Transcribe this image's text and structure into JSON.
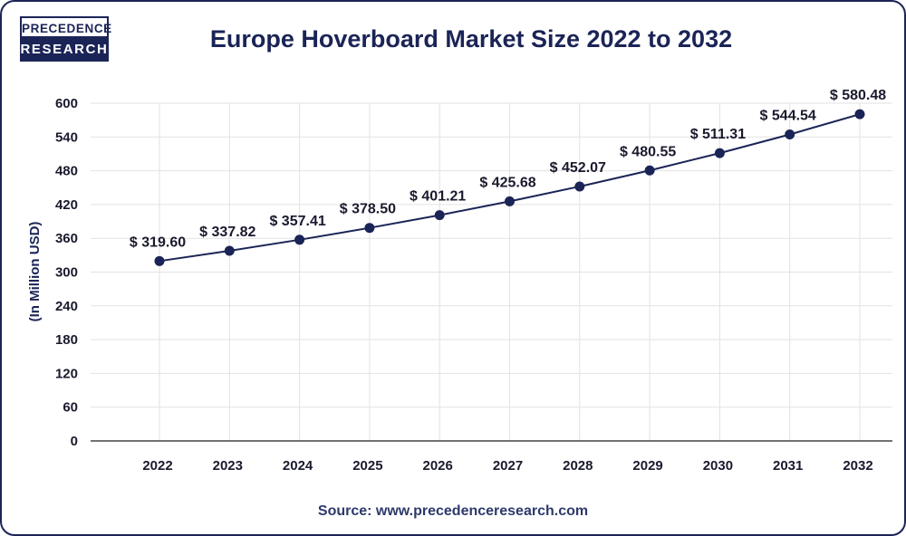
{
  "brand": {
    "line1": "PRECEDENCE",
    "line2": "RESEARCH",
    "color": "#1b2456"
  },
  "source": "Source: www.precedenceresearch.com",
  "chart_data": {
    "type": "line",
    "title": "Europe Hoverboard Market Size 2022 to 2032",
    "xlabel": "",
    "ylabel": "(In Million USD)",
    "categories": [
      "2022",
      "2023",
      "2024",
      "2025",
      "2026",
      "2027",
      "2028",
      "2029",
      "2030",
      "2031",
      "2032"
    ],
    "series": [
      {
        "values": [
          319.6,
          337.82,
          357.41,
          378.5,
          401.21,
          425.68,
          452.07,
          480.55,
          511.31,
          544.54,
          580.48
        ],
        "labels": [
          "$ 319.60",
          "$ 337.82",
          "$ 357.41",
          "$ 378.50",
          "$ 401.21",
          "$ 425.68",
          "$ 452.07",
          "$ 480.55",
          "$ 511.31",
          "$ 544.54",
          "$ 580.48"
        ],
        "color": "#1b2456"
      }
    ],
    "yticks": [
      "0",
      "60",
      "120",
      "180",
      "240",
      "300",
      "360",
      "420",
      "480",
      "540",
      "600"
    ],
    "ylim": [
      0,
      600
    ],
    "grid": true,
    "legend": "none"
  }
}
